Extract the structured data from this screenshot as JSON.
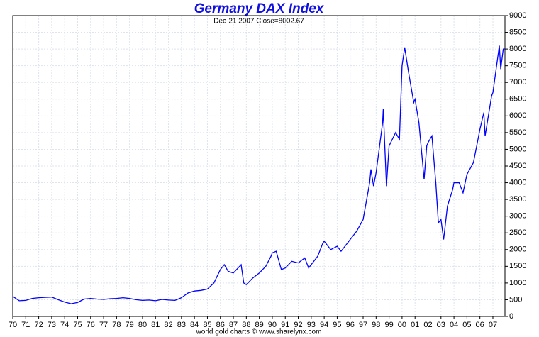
{
  "chart_data": {
    "type": "line",
    "title": "Germany DAX Index",
    "subtitle": "Dec-21  2007   Close=8002.67",
    "footer": "world gold charts © www.sharelynx.com",
    "grid": true,
    "xlim": [
      1970,
      2007.93
    ],
    "xticks": [
      {
        "value": 1970,
        "label": "70"
      },
      {
        "value": 1971,
        "label": "71"
      },
      {
        "value": 1972,
        "label": "72"
      },
      {
        "value": 1973,
        "label": "73"
      },
      {
        "value": 1974,
        "label": "74"
      },
      {
        "value": 1975,
        "label": "75"
      },
      {
        "value": 1976,
        "label": "76"
      },
      {
        "value": 1977,
        "label": "77"
      },
      {
        "value": 1978,
        "label": "78"
      },
      {
        "value": 1979,
        "label": "79"
      },
      {
        "value": 1980,
        "label": "80"
      },
      {
        "value": 1981,
        "label": "81"
      },
      {
        "value": 1982,
        "label": "82"
      },
      {
        "value": 1983,
        "label": "83"
      },
      {
        "value": 1984,
        "label": "84"
      },
      {
        "value": 1985,
        "label": "85"
      },
      {
        "value": 1986,
        "label": "86"
      },
      {
        "value": 1987,
        "label": "87"
      },
      {
        "value": 1988,
        "label": "88"
      },
      {
        "value": 1989,
        "label": "89"
      },
      {
        "value": 1990,
        "label": "90"
      },
      {
        "value": 1991,
        "label": "91"
      },
      {
        "value": 1992,
        "label": "92"
      },
      {
        "value": 1993,
        "label": "93"
      },
      {
        "value": 1994,
        "label": "94"
      },
      {
        "value": 1995,
        "label": "95"
      },
      {
        "value": 1996,
        "label": "96"
      },
      {
        "value": 1997,
        "label": "97"
      },
      {
        "value": 1998,
        "label": "98"
      },
      {
        "value": 1999,
        "label": "99"
      },
      {
        "value": 2000,
        "label": "00"
      },
      {
        "value": 2001,
        "label": "01"
      },
      {
        "value": 2002,
        "label": "02"
      },
      {
        "value": 2003,
        "label": "03"
      },
      {
        "value": 2004,
        "label": "04"
      },
      {
        "value": 2005,
        "label": "05"
      },
      {
        "value": 2006,
        "label": "06"
      },
      {
        "value": 2007,
        "label": "07"
      }
    ],
    "ylim": [
      0,
      9000
    ],
    "yticks": [
      0,
      500,
      1000,
      1500,
      2000,
      2500,
      3000,
      3500,
      4000,
      4500,
      5000,
      5500,
      6000,
      6500,
      7000,
      7500,
      8000,
      8500,
      9000
    ],
    "series": [
      {
        "name": "DAX",
        "color": "#0000ff",
        "x": [
          1970,
          1970.5,
          1971,
          1971.5,
          1972,
          1972.5,
          1973,
          1973.5,
          1974,
          1974.5,
          1975,
          1975.5,
          1976,
          1976.5,
          1977,
          1977.5,
          1978,
          1978.5,
          1979,
          1979.5,
          1980,
          1980.5,
          1981,
          1981.5,
          1982,
          1982.5,
          1983,
          1983.5,
          1984,
          1984.5,
          1985,
          1985.5,
          1986,
          1986.3,
          1986.6,
          1987,
          1987.6,
          1987.8,
          1988,
          1988.5,
          1989,
          1989.5,
          1989.9,
          1990,
          1990.3,
          1990.7,
          1991,
          1991.5,
          1992,
          1992.5,
          1992.8,
          1993,
          1993.5,
          1993.9,
          1994,
          1994.5,
          1995,
          1995.3,
          1995.8,
          1996,
          1996.5,
          1997,
          1997.5,
          1997.6,
          1997.8,
          1998,
          1998.5,
          1998.55,
          1998.8,
          1999,
          1999.5,
          1999.8,
          2000,
          2000.2,
          2000.5,
          2000.9,
          2001,
          2001.3,
          2001.7,
          2001.9,
          2002,
          2002.3,
          2002.6,
          2002.8,
          2003,
          2003.2,
          2003.5,
          2003.9,
          2004,
          2004.4,
          2004.7,
          2005,
          2005.5,
          2005.9,
          2006,
          2006.3,
          2006.4,
          2006.9,
          2007,
          2007.5,
          2007.6,
          2007.8,
          2007.93
        ],
        "values": [
          600,
          470,
          480,
          540,
          560,
          570,
          580,
          500,
          430,
          380,
          420,
          520,
          540,
          520,
          510,
          530,
          540,
          560,
          540,
          500,
          480,
          490,
          470,
          510,
          490,
          480,
          560,
          700,
          760,
          780,
          820,
          1000,
          1400,
          1550,
          1350,
          1300,
          1550,
          1000,
          950,
          1150,
          1300,
          1500,
          1800,
          1900,
          1950,
          1400,
          1450,
          1650,
          1600,
          1750,
          1450,
          1550,
          1800,
          2200,
          2250,
          2000,
          2100,
          1950,
          2200,
          2300,
          2550,
          2900,
          4000,
          4400,
          3900,
          4300,
          5800,
          6200,
          3900,
          5100,
          5500,
          5300,
          7500,
          8050,
          7300,
          6400,
          6500,
          5800,
          4100,
          5100,
          5200,
          5400,
          4000,
          2800,
          2900,
          2300,
          3300,
          3800,
          4000,
          4000,
          3700,
          4250,
          4600,
          5400,
          5600,
          6100,
          5400,
          6600,
          6700,
          8100,
          7400,
          8000,
          8003
        ]
      }
    ]
  }
}
